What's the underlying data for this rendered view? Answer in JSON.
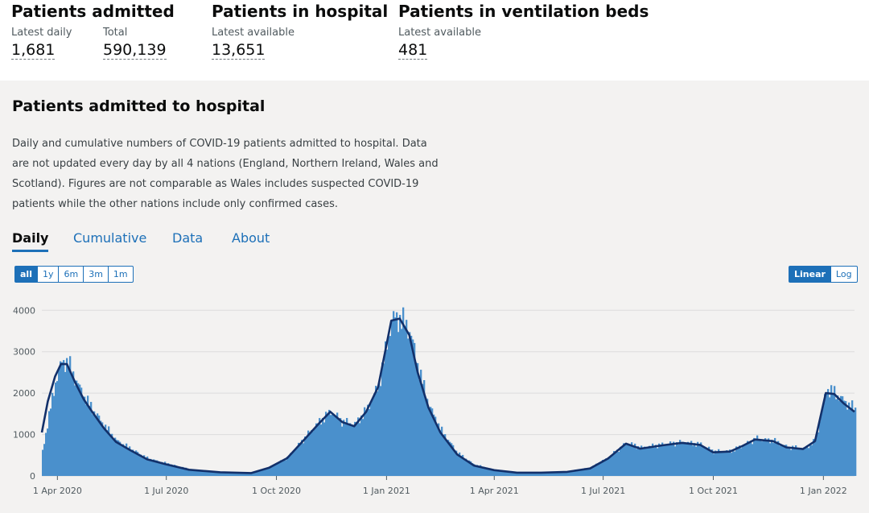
{
  "headline": {
    "admitted": {
      "title": "Patients admitted",
      "latest_label": "Latest daily",
      "latest_value": "1,681",
      "total_label": "Total",
      "total_value": "590,139"
    },
    "in_hospital": {
      "title": "Patients in hospital",
      "label": "Latest available",
      "value": "13,651"
    },
    "ventilation": {
      "title": "Patients in ventilation beds",
      "label": "Latest available",
      "value": "481"
    }
  },
  "card": {
    "title": "Patients admitted to hospital",
    "description": "Daily and cumulative numbers of COVID-19 patients admitted to hospital. Data are not updated every day by all 4 nations (England, Northern Ireland, Wales and Scotland). Figures are not comparable as Wales includes suspected COVID-19 patients while the other nations include only confirmed cases.",
    "tabs": [
      {
        "label": "Daily",
        "active": true
      },
      {
        "label": "Cumulative",
        "active": false
      },
      {
        "label": "Data",
        "active": false
      },
      {
        "label": "About",
        "active": false
      }
    ],
    "range_buttons": [
      {
        "label": "all",
        "active": true
      },
      {
        "label": "1y",
        "active": false
      },
      {
        "label": "6m",
        "active": false
      },
      {
        "label": "3m",
        "active": false
      },
      {
        "label": "1m",
        "active": false
      }
    ],
    "scale_buttons": [
      {
        "label": "Linear",
        "active": true
      },
      {
        "label": "Log",
        "active": false
      }
    ]
  },
  "colors": {
    "bar": "#4a90cc",
    "line": "#12306a",
    "accent": "#1d70b8"
  },
  "chart_data": {
    "type": "bar",
    "y_ticks": [
      0,
      1000,
      2000,
      3000,
      4000
    ],
    "ylim": [
      0,
      4200
    ],
    "x_ticks": [
      "1 Apr 2020",
      "1 Jul 2020",
      "1 Oct 2020",
      "1 Jan 2021",
      "1 Apr 2021",
      "1 Jul 2021",
      "1 Oct 2021",
      "1 Jan 2022"
    ],
    "grid": true,
    "series": [
      {
        "kind": "daily_bars",
        "x": [
          "2020-03-19",
          "2020-03-24",
          "2020-03-30",
          "2020-04-04",
          "2020-04-09",
          "2020-04-16",
          "2020-04-23",
          "2020-04-30",
          "2020-05-10",
          "2020-05-20",
          "2020-06-01",
          "2020-06-15",
          "2020-07-01",
          "2020-07-20",
          "2020-08-15",
          "2020-09-10",
          "2020-09-25",
          "2020-10-10",
          "2020-10-25",
          "2020-11-05",
          "2020-11-15",
          "2020-11-25",
          "2020-12-05",
          "2020-12-15",
          "2020-12-25",
          "2021-01-05",
          "2021-01-12",
          "2021-01-20",
          "2021-01-27",
          "2021-02-05",
          "2021-02-15",
          "2021-03-01",
          "2021-03-15",
          "2021-04-01",
          "2021-04-20",
          "2021-05-10",
          "2021-06-01",
          "2021-06-20",
          "2021-07-05",
          "2021-07-20",
          "2021-08-01",
          "2021-08-20",
          "2021-09-05",
          "2021-09-20",
          "2021-10-01",
          "2021-10-15",
          "2021-10-25",
          "2021-11-05",
          "2021-11-20",
          "2021-12-01",
          "2021-12-15",
          "2021-12-25",
          "2022-01-03",
          "2022-01-10",
          "2022-01-18",
          "2022-01-27"
        ],
        "y": [
          600,
          1400,
          2300,
          2750,
          2750,
          2300,
          1900,
          1600,
          1200,
          850,
          650,
          420,
          300,
          160,
          90,
          70,
          200,
          450,
          950,
          1300,
          1550,
          1300,
          1250,
          1600,
          2200,
          3800,
          3800,
          3500,
          2600,
          1700,
          1100,
          550,
          270,
          150,
          90,
          90,
          110,
          200,
          450,
          800,
          680,
          760,
          810,
          760,
          590,
          600,
          730,
          900,
          850,
          700,
          660,
          850,
          2100,
          2000,
          1800,
          1600
        ]
      },
      {
        "kind": "rolling_average",
        "x": [
          "2020-03-19",
          "2020-03-24",
          "2020-03-30",
          "2020-04-04",
          "2020-04-09",
          "2020-04-16",
          "2020-04-23",
          "2020-04-30",
          "2020-05-10",
          "2020-05-20",
          "2020-06-01",
          "2020-06-15",
          "2020-07-01",
          "2020-07-20",
          "2020-08-15",
          "2020-09-10",
          "2020-09-25",
          "2020-10-10",
          "2020-10-25",
          "2020-11-05",
          "2020-11-15",
          "2020-11-25",
          "2020-12-05",
          "2020-12-15",
          "2020-12-25",
          "2021-01-05",
          "2021-01-12",
          "2021-01-20",
          "2021-01-27",
          "2021-02-05",
          "2021-02-15",
          "2021-03-01",
          "2021-03-15",
          "2021-04-01",
          "2021-04-20",
          "2021-05-10",
          "2021-06-01",
          "2021-06-20",
          "2021-07-05",
          "2021-07-20",
          "2021-08-01",
          "2021-08-20",
          "2021-09-05",
          "2021-09-20",
          "2021-10-01",
          "2021-10-15",
          "2021-10-25",
          "2021-11-05",
          "2021-11-20",
          "2021-12-01",
          "2021-12-15",
          "2021-12-25",
          "2022-01-03",
          "2022-01-10",
          "2022-01-18",
          "2022-01-27"
        ],
        "y": [
          1050,
          1800,
          2400,
          2700,
          2700,
          2250,
          1850,
          1550,
          1150,
          820,
          620,
          400,
          280,
          150,
          90,
          70,
          200,
          430,
          900,
          1250,
          1550,
          1300,
          1200,
          1550,
          2150,
          3750,
          3800,
          3400,
          2500,
          1650,
          1050,
          520,
          250,
          140,
          80,
          80,
          100,
          180,
          420,
          780,
          660,
          740,
          800,
          750,
          570,
          590,
          720,
          880,
          840,
          690,
          650,
          840,
          2000,
          1980,
          1750,
          1550
        ]
      }
    ]
  }
}
